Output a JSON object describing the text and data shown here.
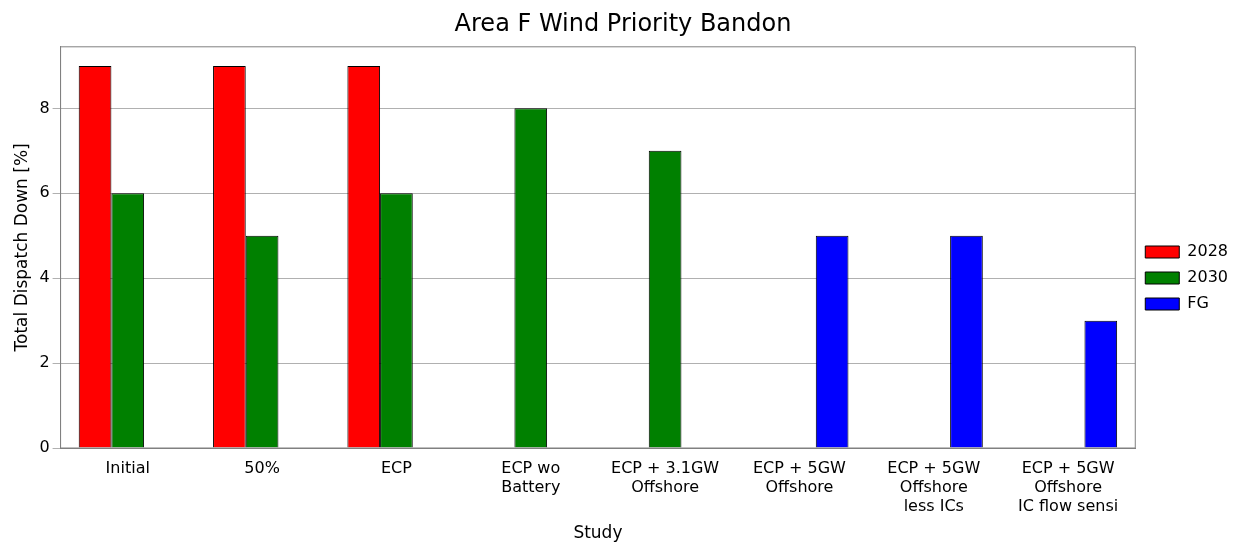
{
  "chart_data": {
    "type": "bar",
    "title": "Area F Wind Priority Bandon",
    "xlabel": "Study",
    "ylabel": "Total Dispatch Down [%]",
    "categories": [
      "Initial",
      "50%",
      "ECP",
      "ECP wo\nBattery",
      "ECP + 3.1GW\nOffshore",
      "ECP + 5GW\nOffshore",
      "ECP + 5GW\nOffshore\nless ICs",
      "ECP + 5GW\nOffshore\nIC flow sensi"
    ],
    "series": [
      {
        "name": "2028",
        "color": "#ff0000",
        "values": [
          9,
          9,
          9,
          null,
          null,
          null,
          null,
          null
        ]
      },
      {
        "name": "2030",
        "color": "#008000",
        "values": [
          6,
          5,
          6,
          8,
          7,
          null,
          null,
          null
        ]
      },
      {
        "name": "FG",
        "color": "#0000ff",
        "values": [
          null,
          null,
          null,
          null,
          null,
          5,
          5,
          3
        ]
      }
    ],
    "ylim": [
      0,
      9.45
    ],
    "yticks": [
      0,
      2,
      4,
      6,
      8
    ],
    "grid": "y",
    "legend": "right"
  }
}
